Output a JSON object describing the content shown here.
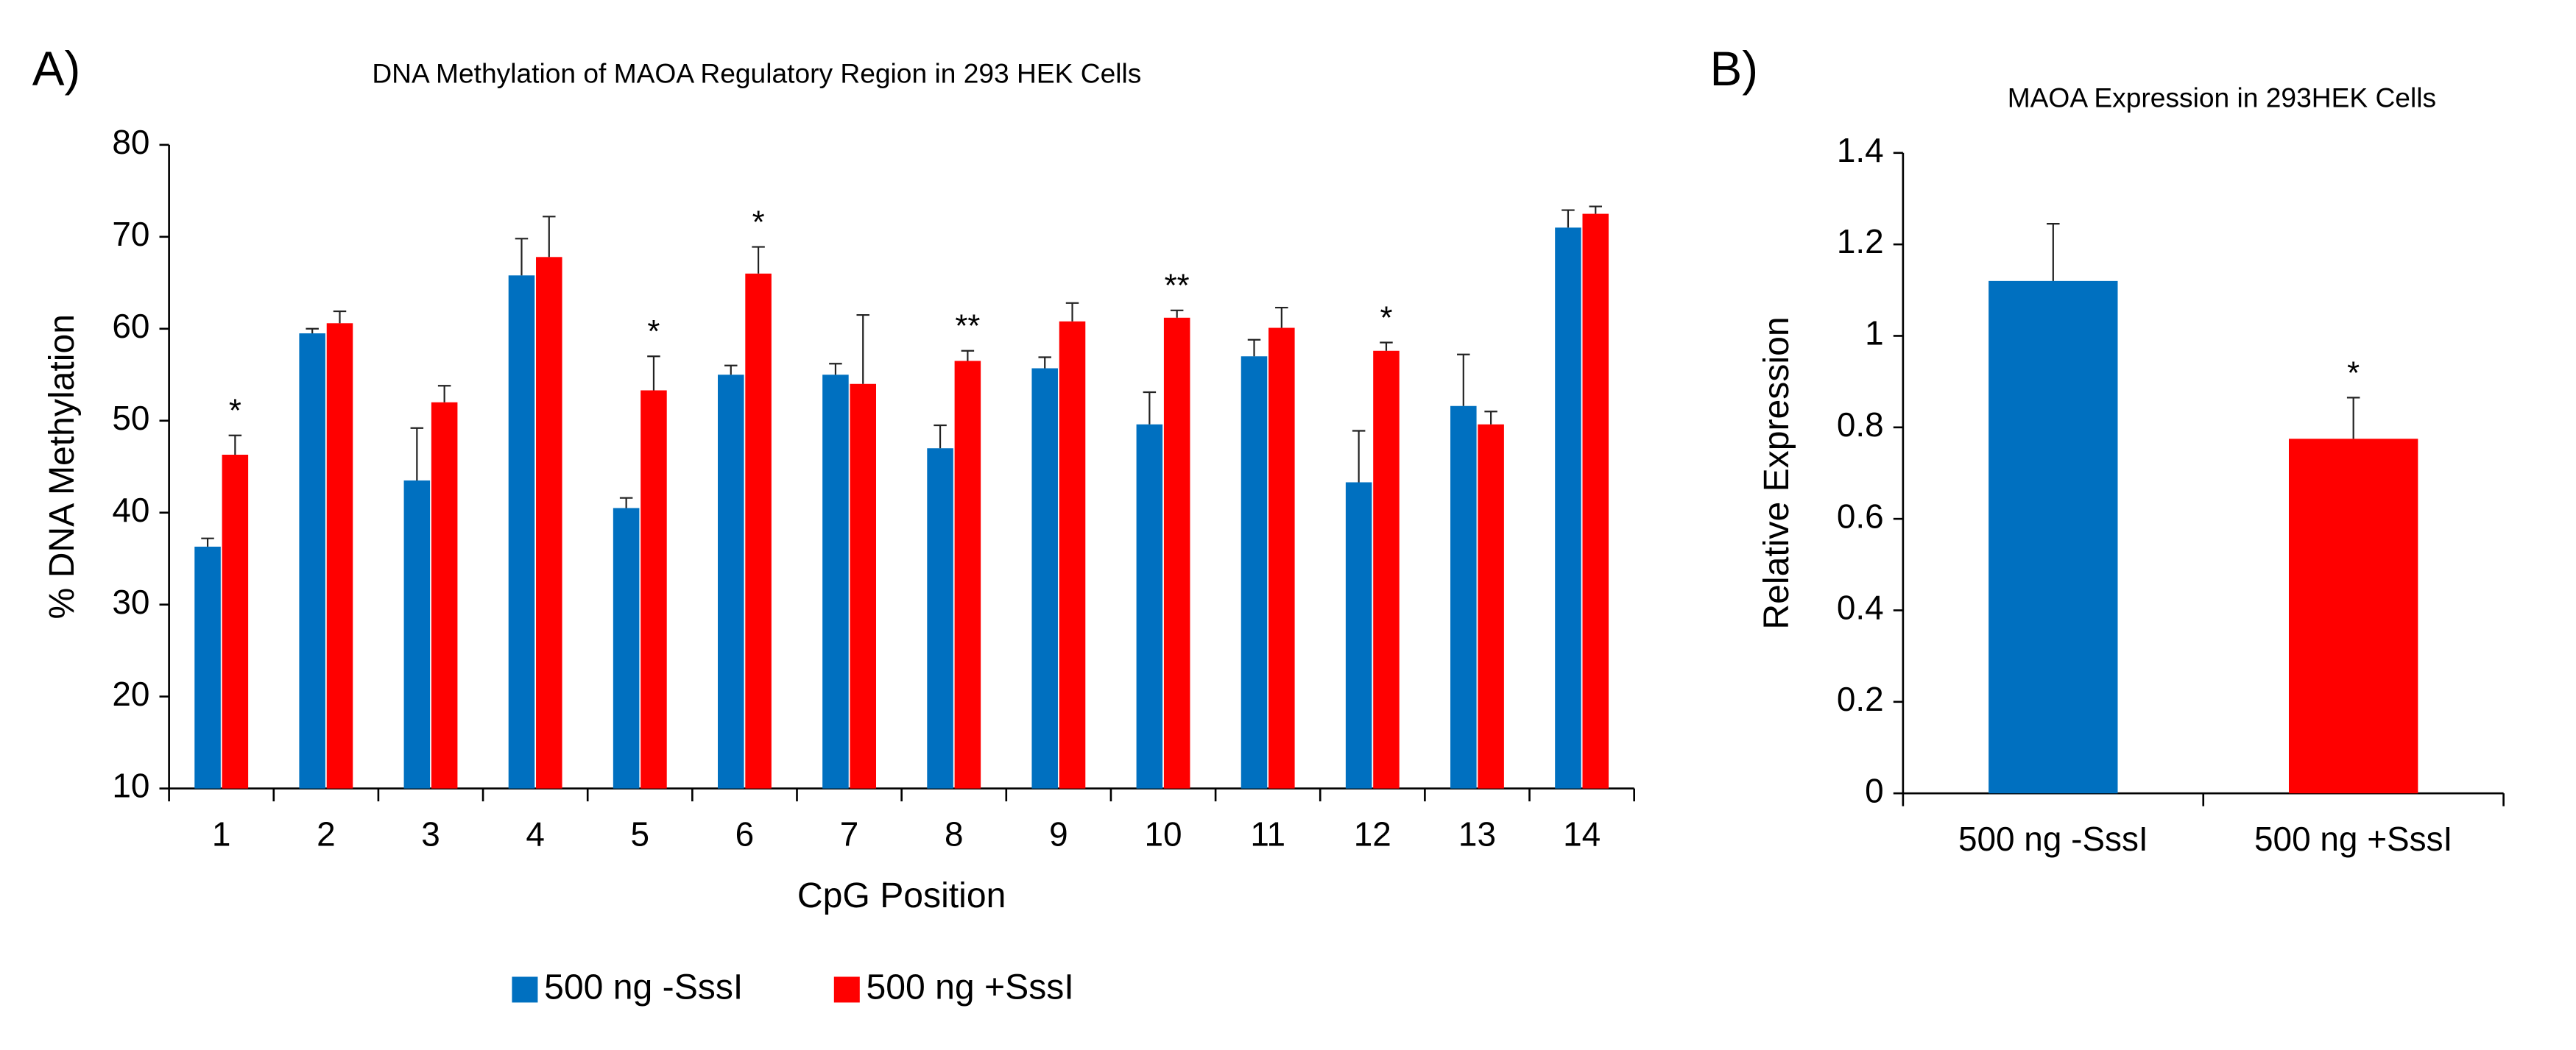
{
  "chart_data": [
    {
      "type": "bar",
      "panel_label": "A)",
      "title": "DNA Methylation of MAOA Regulatory Region in 293 HEK Cells",
      "x_label": "CpG Position",
      "y_label": "% DNA Methylation",
      "categories": [
        "1",
        "2",
        "3",
        "4",
        "5",
        "6",
        "7",
        "8",
        "9",
        "10",
        "11",
        "12",
        "13",
        "14"
      ],
      "series": [
        {
          "name": "500 ng -SssI",
          "color": "#0070c0",
          "values": [
            36.3,
            59.5,
            43.5,
            65.8,
            40.5,
            55,
            55,
            47,
            55.7,
            49.6,
            57,
            43.3,
            51.6,
            71
          ],
          "errors": [
            0.9,
            0.5,
            5.7,
            4,
            1.1,
            1,
            1.2,
            2.5,
            1.2,
            3.5,
            1.8,
            5.6,
            5.6,
            1.9
          ]
        },
        {
          "name": "500 ng +SssI",
          "color": "#ff0000",
          "values": [
            46.3,
            60.6,
            52,
            67.8,
            53.3,
            66,
            54,
            56.5,
            60.8,
            61.2,
            60.1,
            57.6,
            49.6,
            72.5
          ],
          "errors": [
            2.1,
            1.3,
            1.8,
            4.4,
            3.7,
            2.9,
            7.5,
            1.1,
            2,
            0.8,
            2.2,
            0.9,
            1.4,
            0.8
          ]
        }
      ],
      "significance": [
        "*",
        null,
        null,
        null,
        "*",
        "*",
        null,
        "**",
        null,
        "**",
        null,
        "*",
        null,
        null
      ],
      "ylim": [
        10,
        80
      ],
      "yticks": [
        10,
        20,
        30,
        40,
        50,
        60,
        70,
        80
      ],
      "grid": false,
      "legend": "bottom"
    },
    {
      "type": "bar",
      "panel_label": "B)",
      "title": "MAOA Expression in 293HEK Cells",
      "y_label": "Relative Expression",
      "categories": [
        "500 ng -SssI",
        "500 ng +SssI"
      ],
      "values": [
        1.12,
        0.775
      ],
      "errors": [
        0.125,
        0.09
      ],
      "colors": [
        "#0070c0",
        "#ff0000"
      ],
      "significance": [
        null,
        "*"
      ],
      "ylim": [
        0,
        1.4
      ],
      "yticks": [
        0,
        0.2,
        0.4,
        0.6,
        0.8,
        1,
        1.2,
        1.4
      ],
      "grid": false
    }
  ]
}
